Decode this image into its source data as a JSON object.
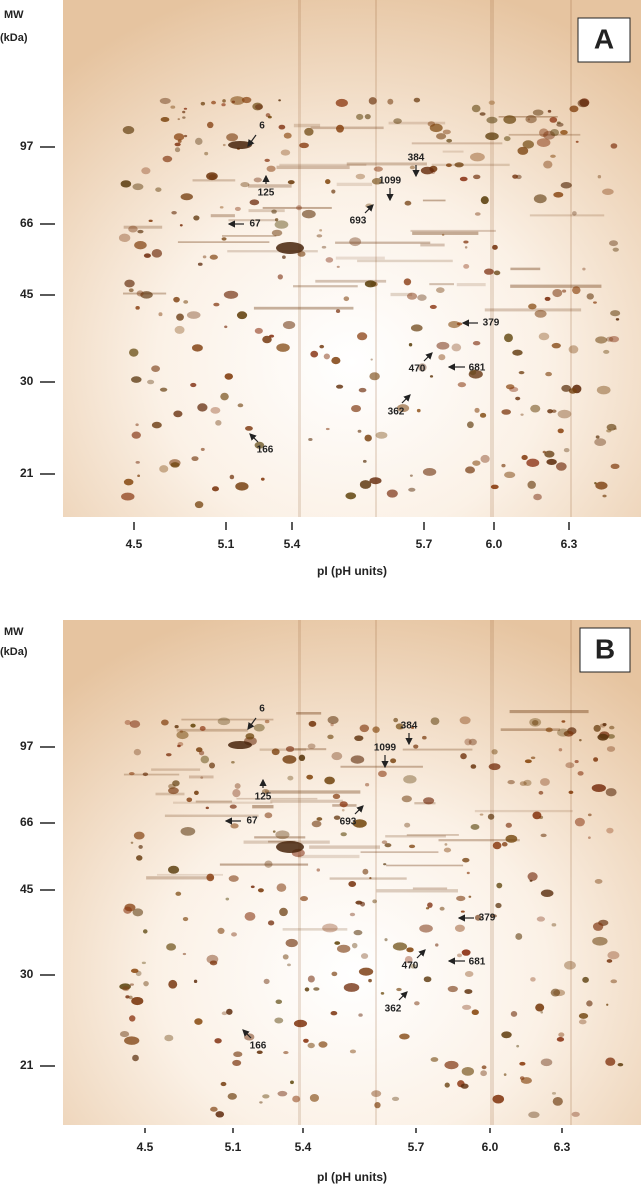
{
  "panels": [
    {
      "label": "A",
      "y_axis_title": [
        "MW",
        "(kDa)"
      ],
      "y_ticks": [
        "97",
        "66",
        "45",
        "30",
        "21"
      ],
      "x_ticks": [
        "4.5",
        "5.1",
        "5.4",
        "5.7",
        "6.0",
        "6.3"
      ],
      "x_axis_title": "pI (pH units)",
      "annotations": [
        "6",
        "125",
        "67",
        "384",
        "1099",
        "693",
        "379",
        "470",
        "681",
        "362",
        "166"
      ]
    },
    {
      "label": "B",
      "y_axis_title": [
        "MW",
        "(kDa)"
      ],
      "y_ticks": [
        "97",
        "66",
        "45",
        "30",
        "21"
      ],
      "x_ticks": [
        "4.5",
        "5.1",
        "5.4",
        "5.7",
        "6.0",
        "6.3"
      ],
      "x_axis_title": "pI (pH units)",
      "annotations": [
        "6",
        "125",
        "67",
        "384",
        "1099",
        "693",
        "379",
        "470",
        "681",
        "362",
        "166"
      ]
    }
  ]
}
